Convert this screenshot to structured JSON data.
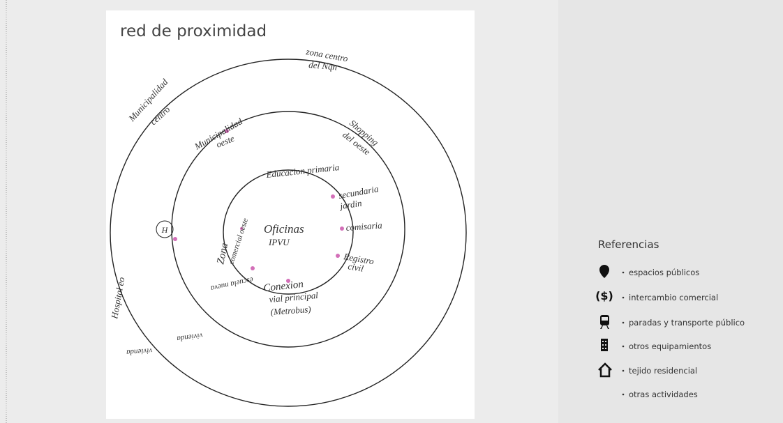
{
  "title": "red de proximidad",
  "annotations": {
    "zona_centro_1": "zona centro",
    "zona_centro_2": "del Nqn",
    "muni_centro_1": "Municipalidad",
    "muni_centro_2": "centro",
    "muni_oeste_1": "Municipalidad",
    "muni_oeste_2": "oeste",
    "shopping_1": "Shopping",
    "shopping_2": "del oeste",
    "educacion": "Educacion primaria",
    "secundaria": "secundaria",
    "jardin": "jardin",
    "comisaria": "comisaria",
    "registro_1": "Registro",
    "registro_2": "civil",
    "oficinas_1": "Oficinas",
    "oficinas_2": "IPVU",
    "zona_comercial_1": "Zona",
    "zona_comercial_2": "comercial oeste",
    "hospital_mark": "H",
    "conexion_1": "Conexion",
    "conexion_2": "vial principal",
    "conexion_3": "(Metrobus)",
    "escuela": "escuela nueva",
    "vivienda_1": "vivienda",
    "vivienda_2": "vivienda",
    "hospital": "Hospital eo"
  },
  "legend": {
    "title": "Referencias",
    "items": [
      "espacios públicos",
      "intercambio comercial",
      "paradas y transporte público",
      "otros equipamientos",
      "tejido residencial",
      "otras actividades"
    ]
  }
}
